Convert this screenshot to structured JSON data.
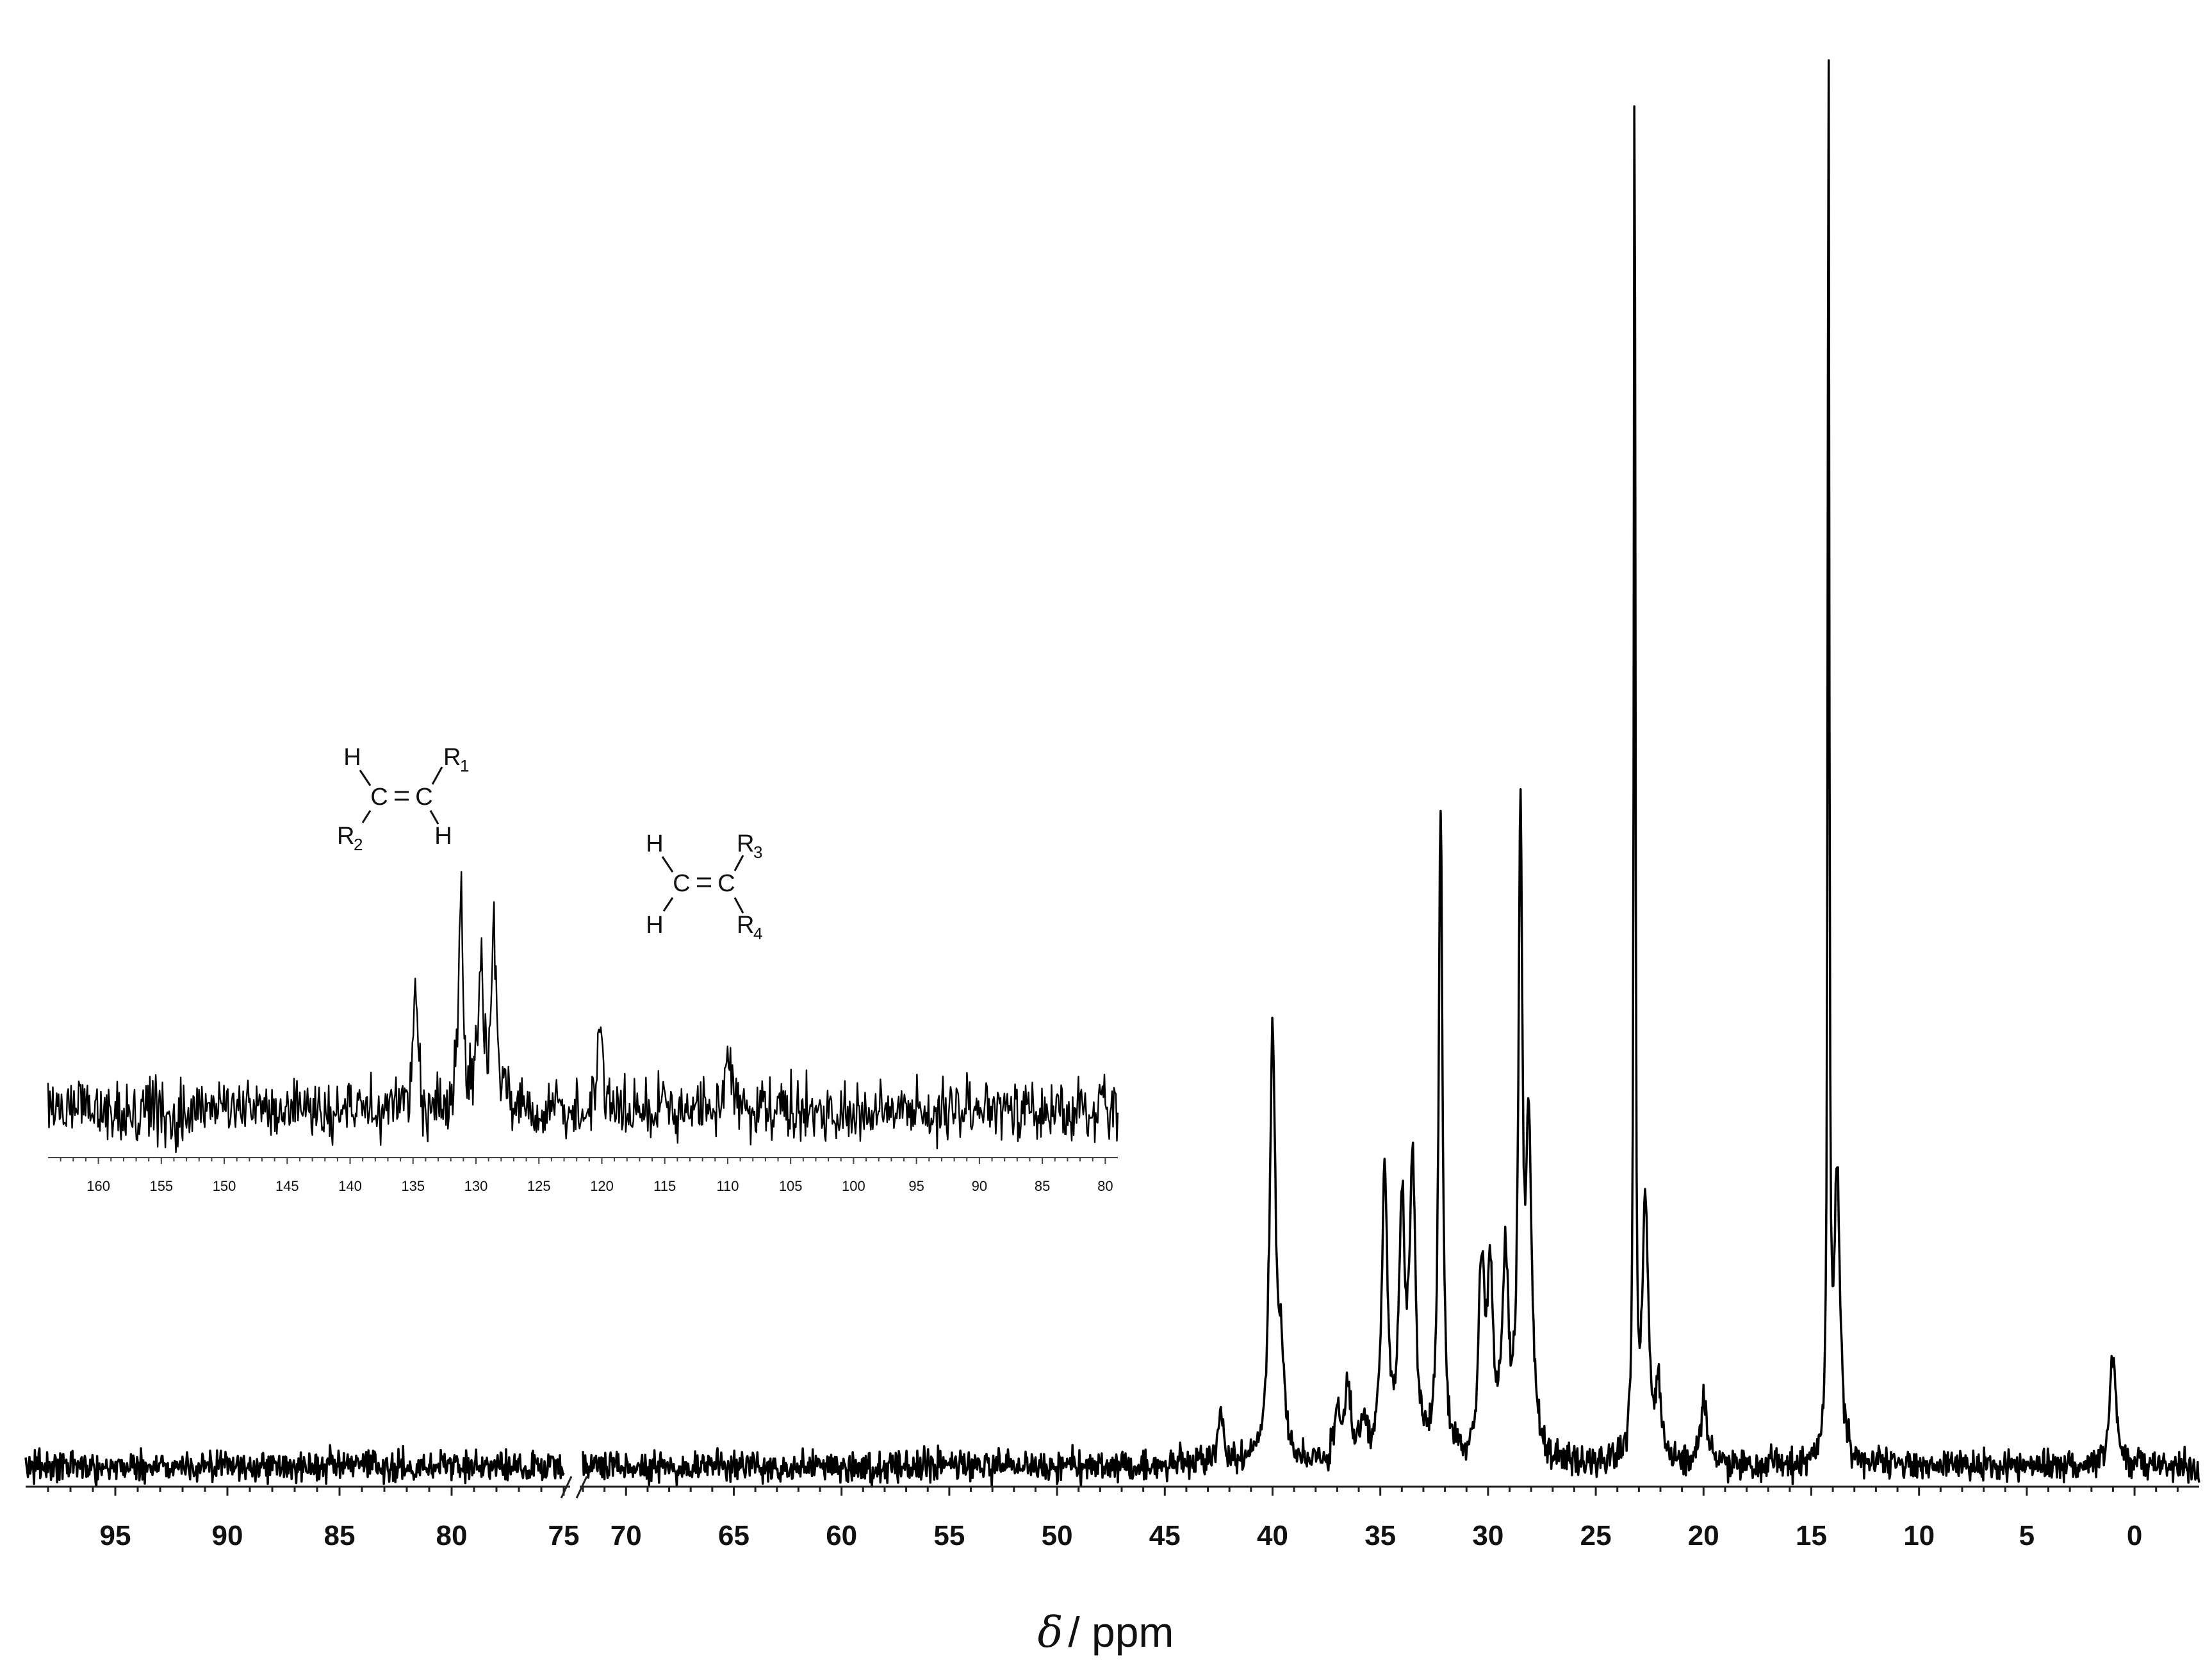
{
  "chart_data": [
    {
      "type": "line",
      "title": "",
      "xlabel_symbol": "δ",
      "xlabel_unit": "/ ppm",
      "x_reversed": true,
      "axis_break": [
        72,
        75
      ],
      "segments": [
        [
          99,
          75
        ],
        [
          72,
          -3
        ]
      ],
      "xticks": [
        95,
        90,
        85,
        80,
        75,
        70,
        65,
        60,
        55,
        50,
        45,
        40,
        35,
        30,
        25,
        20,
        15,
        10,
        5,
        0
      ],
      "baseline_noise": 0.011,
      "peaks": [
        {
          "ppm": 42.4,
          "height": 0.035
        },
        {
          "ppm": 40.0,
          "height": 0.3
        },
        {
          "ppm": 39.6,
          "height": 0.06
        },
        {
          "ppm": 37.0,
          "height": 0.035
        },
        {
          "ppm": 36.5,
          "height": 0.05
        },
        {
          "ppm": 35.8,
          "height": 0.025
        },
        {
          "ppm": 34.8,
          "height": 0.2
        },
        {
          "ppm": 34.0,
          "height": 0.17
        },
        {
          "ppm": 33.5,
          "height": 0.2
        },
        {
          "ppm": 32.2,
          "height": 0.45
        },
        {
          "ppm": 30.3,
          "height": 0.13
        },
        {
          "ppm": 29.9,
          "height": 0.12
        },
        {
          "ppm": 29.2,
          "height": 0.14
        },
        {
          "ppm": 28.5,
          "height": 0.43
        },
        {
          "ppm": 28.1,
          "height": 0.22
        },
        {
          "ppm": 23.2,
          "height": 1.0
        },
        {
          "ppm": 22.7,
          "height": 0.18
        },
        {
          "ppm": 22.1,
          "height": 0.05
        },
        {
          "ppm": 20.0,
          "height": 0.05
        },
        {
          "ppm": 14.2,
          "height": 1.0
        },
        {
          "ppm": 13.8,
          "height": 0.2
        },
        {
          "ppm": 1.0,
          "height": 0.08
        }
      ]
    },
    {
      "type": "line",
      "title": "",
      "x_reversed": true,
      "x_range": [
        164,
        79
      ],
      "xticks": [
        160,
        155,
        150,
        145,
        140,
        135,
        130,
        125,
        120,
        115,
        110,
        105,
        100,
        95,
        90,
        85,
        80
      ],
      "baseline_noise": 0.15,
      "peaks": [
        {
          "ppm": 134.8,
          "height": 0.55
        },
        {
          "ppm": 131.2,
          "height": 1.0
        },
        {
          "ppm": 129.6,
          "height": 0.72
        },
        {
          "ppm": 128.6,
          "height": 0.92
        },
        {
          "ppm": 120.2,
          "height": 0.45
        },
        {
          "ppm": 110.0,
          "height": 0.3
        }
      ],
      "structures": [
        {
          "atoms": [
            "H",
            "C",
            "C",
            "R",
            "R",
            "H"
          ],
          "subscripts": [
            "1",
            "2"
          ]
        },
        {
          "atoms": [
            "H",
            "C",
            "C",
            "R",
            "R",
            "H"
          ],
          "subscripts": [
            "3",
            "4"
          ]
        }
      ]
    }
  ]
}
